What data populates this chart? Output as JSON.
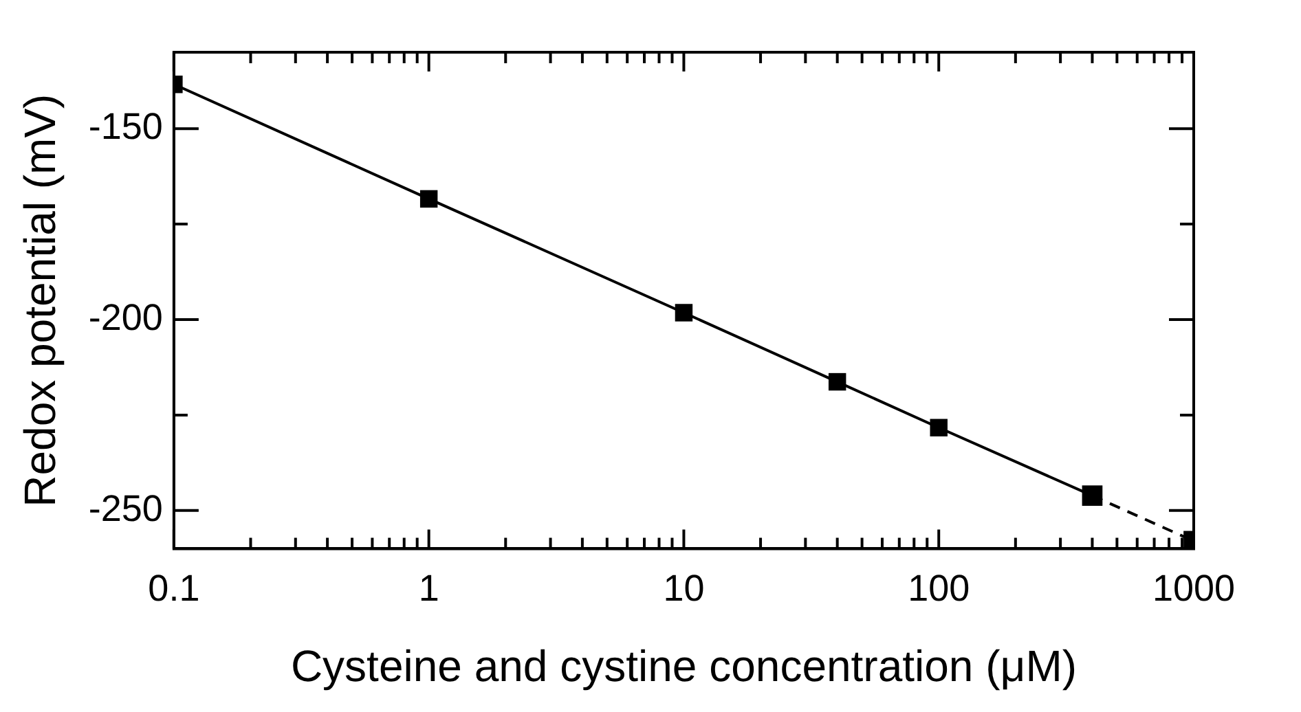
{
  "chart_data": {
    "type": "line",
    "xlabel": "Cysteine and cystine concentration (μM)",
    "ylabel": "Redox potential (mV)",
    "log": "x",
    "xlim": [
      0.1,
      1000
    ],
    "xticks": [
      0.1,
      {
        "value": 0.2,
        "label": null
      },
      {
        "value": 0.3,
        "label": null
      },
      {
        "value": 0.4,
        "label": null
      },
      {
        "value": 0.5,
        "label": null
      },
      {
        "value": 0.6,
        "label": null
      },
      {
        "value": 0.7,
        "label": null
      },
      {
        "value": 0.8,
        "label": null
      },
      {
        "value": 0.9,
        "label": null
      },
      1,
      {
        "value": 2,
        "label": null
      },
      {
        "value": 3,
        "label": null
      },
      {
        "value": 4,
        "label": null
      },
      {
        "value": 5,
        "label": null
      },
      {
        "value": 6,
        "label": null
      },
      {
        "value": 7,
        "label": null
      },
      {
        "value": 8,
        "label": null
      },
      {
        "value": 9,
        "label": null
      },
      10,
      {
        "value": 20,
        "label": null
      },
      {
        "value": 30,
        "label": null
      },
      {
        "value": 40,
        "label": null
      },
      {
        "value": 50,
        "label": null
      },
      {
        "value": 60,
        "label": null
      },
      {
        "value": 70,
        "label": null
      },
      {
        "value": 80,
        "label": null
      },
      {
        "value": 90,
        "label": null
      },
      100,
      {
        "value": 200,
        "label": null
      },
      {
        "value": 300,
        "label": null
      },
      {
        "value": 400,
        "label": null
      },
      {
        "value": 500,
        "label": null
      },
      {
        "value": 600,
        "label": null
      },
      {
        "value": 700,
        "label": null
      },
      {
        "value": 800,
        "label": null
      },
      {
        "value": 900,
        "label": null
      },
      1000
    ],
    "ylim": [
      -260,
      -130
    ],
    "yticks": [
      -250,
      {
        "value": -225,
        "label": null
      },
      -200,
      {
        "value": -175,
        "label": null
      },
      -150
    ],
    "grid": false,
    "legend": false,
    "series": [
      {
        "color": "#000000",
        "marker": "square",
        "line_style": "solid",
        "x": [
          0.1,
          1,
          10,
          40,
          100,
          400
        ],
        "values": [
          -138.4,
          -168.4,
          -198.2,
          -216.3,
          -228.3,
          -246.1
        ]
      },
      {
        "color": "#000000",
        "marker": "square",
        "line_style": "dashed",
        "x": [
          400,
          1000
        ],
        "values": [
          -246.1,
          -258
        ]
      }
    ]
  }
}
